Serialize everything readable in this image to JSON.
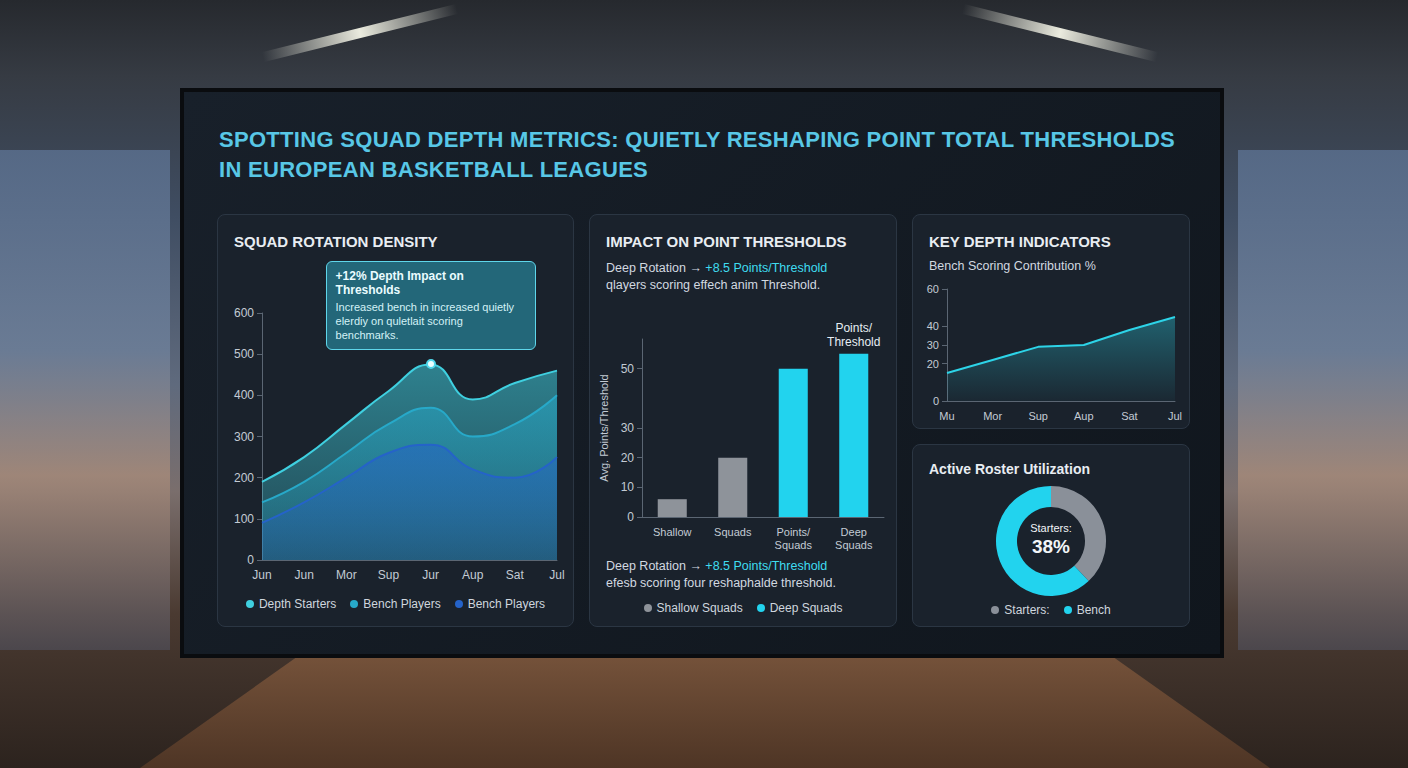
{
  "title": "SPOTTING SQUAD DEPTH METRICS: QUIETLY RESHAPING POINT TOTAL THRESHOLDS IN EUROPEAN BASKETBALL LEAGUES",
  "chart_data": [
    {
      "type": "area",
      "title": "SQUAD ROTATION DENSITY",
      "categories": [
        "Jun",
        "Jun",
        "Mor",
        "Sup",
        "Jur",
        "Aup",
        "Sat",
        "Jul"
      ],
      "series": [
        {
          "name": "Depth Starters",
          "color": "#3fd0e0",
          "values": [
            190,
            250,
            330,
            410,
            475,
            390,
            430,
            460
          ]
        },
        {
          "name": "Bench Players",
          "color": "#27a9c9",
          "values": [
            140,
            190,
            260,
            330,
            370,
            300,
            330,
            400
          ]
        },
        {
          "name": "Bench Players",
          "color": "#2563c9",
          "values": [
            90,
            140,
            200,
            260,
            280,
            220,
            200,
            250
          ]
        }
      ],
      "ylim": [
        0,
        600
      ],
      "yticks": [
        0,
        100,
        200,
        300,
        400,
        500,
        600
      ],
      "grid": false,
      "stacked": false,
      "legend": "bottom",
      "annotation": {
        "title": "+12% Depth Impact on Thresholds",
        "text": "Increased bench in increased quietly elerdiy on quletlait scoring benchmarks."
      }
    },
    {
      "type": "bar",
      "title": "IMPACT ON POINT THRESHOLDS",
      "subtitle": [
        "Deep Rotation → +8.5 Points/Threshold",
        "qlayers scoring effech anim Threshold."
      ],
      "footer": [
        "Deep Rotation → +8.5 Points/Threshold",
        "efesb scoring four reshaphalde threshold."
      ],
      "y_label": "Avg. Points/Threshold",
      "categories": [
        "Shallow",
        "Squads",
        "Points/ Squads",
        "Deep Squads"
      ],
      "series": [
        {
          "name": "Shallow Squads",
          "color": "#8e939a",
          "values": [
            6,
            20,
            null,
            null
          ]
        },
        {
          "name": "Deep Squads",
          "color": "#22d3ee",
          "values": [
            null,
            null,
            50,
            55
          ]
        }
      ],
      "ylim": [
        0,
        60
      ],
      "yticks": [
        0,
        10,
        20,
        30,
        50
      ],
      "grid": false,
      "stacked": false,
      "legend": "bottom",
      "annotation": {
        "text": "Points/ Threshold",
        "category": "Deep Squads"
      }
    },
    {
      "type": "area",
      "title": "KEY DEPTH INDICATORS",
      "subtitle": [
        "Bench Scoring Contribution %"
      ],
      "categories": [
        "Mu",
        "Mor",
        "Sup",
        "Aup",
        "Sat",
        "Jul"
      ],
      "values": [
        15,
        22,
        29,
        30,
        38,
        45
      ],
      "color": "#2dd4e8",
      "ylim": [
        0,
        60
      ],
      "yticks": [
        0,
        20,
        30,
        40,
        60
      ],
      "grid": false
    },
    {
      "type": "pie",
      "title": "Active Roster Utilization",
      "categories": [
        "Starters:",
        "Bench"
      ],
      "values": [
        38,
        62
      ],
      "colors": [
        "#8a9099",
        "#22d3ee"
      ],
      "center_label": [
        "Starters:",
        "38%"
      ],
      "legend": "bottom"
    }
  ]
}
